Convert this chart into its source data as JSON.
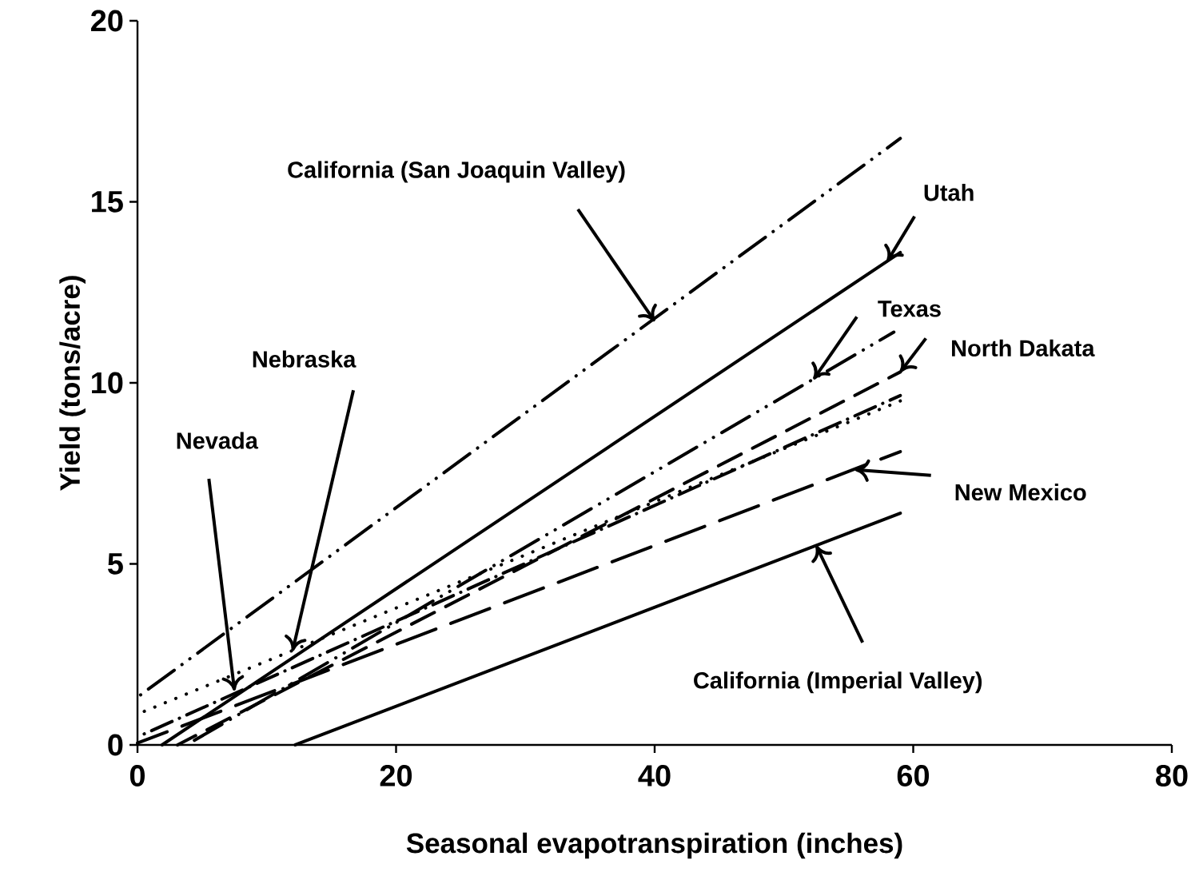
{
  "chart_data": {
    "type": "line",
    "xlabel": "Seasonal evapotranspiration (inches)",
    "ylabel": "Yield (tons/acre)",
    "xlim": [
      0,
      80
    ],
    "ylim": [
      0,
      20
    ],
    "xticks": [
      0,
      20,
      40,
      60,
      80
    ],
    "yticks": [
      0,
      5,
      10,
      15,
      20
    ],
    "grid": false,
    "marker": "none",
    "series": [
      {
        "color": "#000000",
        "line_style": "dashdotdotted",
        "x": [
          0,
          59
        ],
        "values": [
          1.32,
          16.75
        ]
      },
      {
        "color": "#000000",
        "line_style": "solid",
        "x": [
          1.9,
          59
        ],
        "values": [
          0,
          13.6
        ]
      },
      {
        "color": "#000000",
        "line_style": "dashdotdotted",
        "x": [
          3.8,
          58.5
        ],
        "values": [
          0,
          11.4
        ]
      },
      {
        "color": "#000000",
        "line_style": "dashed",
        "x": [
          3.1,
          59
        ],
        "values": [
          0,
          10.3
        ]
      },
      {
        "color": "#000000",
        "line_style": "dotted",
        "x": [
          0,
          59
        ],
        "values": [
          0.85,
          9.5
        ]
      },
      {
        "color": "#000000",
        "line_style": "dashdotted",
        "x": [
          0,
          59
        ],
        "values": [
          0.22,
          9.65
        ]
      },
      {
        "color": "#000000",
        "line_style": "long dashed",
        "x": [
          0,
          59
        ],
        "values": [
          0.05,
          8.1
        ]
      },
      {
        "color": "#000000",
        "line_style": "solid",
        "x": [
          12.2,
          59
        ],
        "values": [
          0,
          6.4
        ]
      }
    ],
    "annotations": [
      {
        "text": "California (San Joaquin Valley)",
        "x": 40,
        "y": 11.7
      },
      {
        "text": "Utah",
        "x": 58,
        "y": 13.36
      },
      {
        "text": "Texas",
        "x": 52.3,
        "y": 10.1
      },
      {
        "text": "North Dakata",
        "x": 59,
        "y": 10.3
      },
      {
        "text": "Nebraska",
        "x": 12,
        "y": 2.6
      },
      {
        "text": "Nevada",
        "x": 7.5,
        "y": 1.5
      },
      {
        "text": "New Mexico",
        "x": 55.5,
        "y": 7.6
      },
      {
        "text": "California (Imperial Valley)",
        "x": 52.5,
        "y": 5.5
      }
    ]
  }
}
